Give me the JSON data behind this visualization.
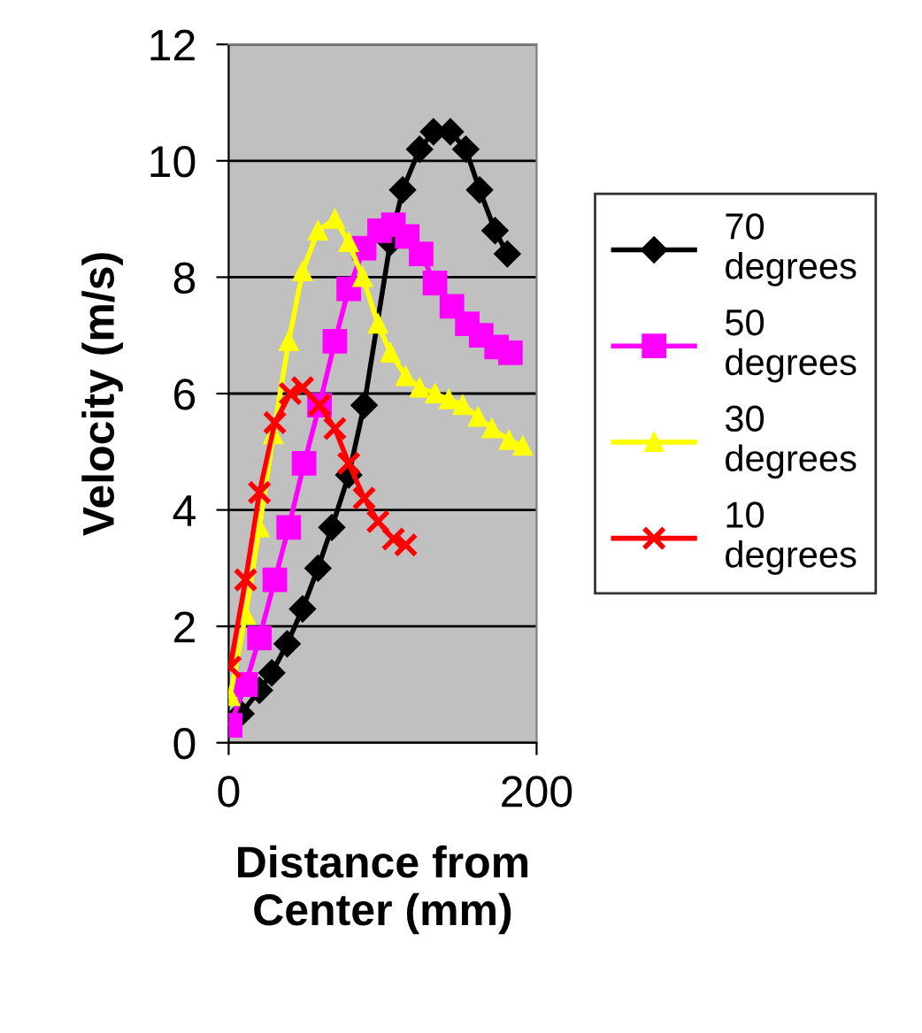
{
  "chart_data": {
    "type": "line",
    "xlabel": "Distance from\nCenter (mm)",
    "ylabel": "Velocity (m/s)",
    "xlim": [
      0,
      200
    ],
    "xticks": [
      0,
      200
    ],
    "ylim": [
      0,
      12
    ],
    "yticks": [
      0,
      2,
      4,
      6,
      8,
      10,
      12
    ],
    "grid": "y",
    "legend": "right",
    "line_style": "solid",
    "series": [
      {
        "name": "70\ndegrees",
        "color": "#000000",
        "marker": "diamond",
        "x": [
          8,
          20,
          28,
          38,
          48,
          58,
          67,
          78,
          88,
          105,
          113,
          124,
          133,
          144,
          154,
          163,
          173,
          181
        ],
        "values": [
          0.5,
          0.9,
          1.2,
          1.7,
          2.3,
          3.0,
          3.7,
          4.6,
          5.8,
          8.6,
          9.5,
          10.2,
          10.5,
          10.5,
          10.2,
          9.5,
          8.8,
          8.4
        ]
      },
      {
        "name": "50\ndegrees",
        "color": "#ff00ff",
        "marker": "square",
        "x": [
          1,
          11,
          20,
          30,
          39,
          49,
          59,
          69,
          78,
          88,
          98,
          107,
          116,
          125,
          134,
          145,
          155,
          164,
          174,
          183
        ],
        "values": [
          0.3,
          1.0,
          1.8,
          2.8,
          3.7,
          4.8,
          5.8,
          6.9,
          7.8,
          8.5,
          8.8,
          8.9,
          8.7,
          8.4,
          7.9,
          7.5,
          7.2,
          7.0,
          6.8,
          6.7
        ]
      },
      {
        "name": "30\ndegrees",
        "color": "#ffff00",
        "marker": "triangle",
        "x": [
          1,
          11,
          20,
          29,
          39,
          48,
          58,
          69,
          78,
          87,
          97,
          105,
          115,
          124,
          134,
          143,
          152,
          162,
          171,
          182,
          191
        ],
        "values": [
          0.8,
          2.2,
          3.7,
          5.3,
          6.9,
          8.1,
          8.8,
          9.0,
          8.6,
          8.0,
          7.2,
          6.7,
          6.3,
          6.1,
          6.0,
          5.9,
          5.8,
          5.6,
          5.4,
          5.2,
          5.1
        ]
      },
      {
        "name": "10\ndegrees",
        "color": "#ff0000",
        "marker": "cross",
        "x": [
          1,
          11,
          20,
          30,
          40,
          48,
          59,
          69,
          78,
          88,
          97,
          107,
          115
        ],
        "values": [
          1.3,
          2.8,
          4.3,
          5.5,
          6.0,
          6.1,
          5.8,
          5.4,
          4.8,
          4.2,
          3.8,
          3.5,
          3.4
        ]
      }
    ]
  }
}
